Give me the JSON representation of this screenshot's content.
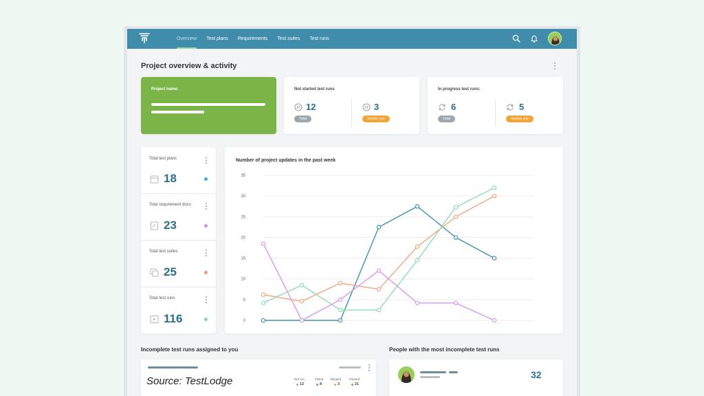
{
  "nav": {
    "items": [
      {
        "label": "Overview",
        "active": true
      },
      {
        "label": "Test plans",
        "active": false
      },
      {
        "label": "Requirements",
        "active": false
      },
      {
        "label": "Test suites",
        "active": false
      },
      {
        "label": "Test runs",
        "active": false
      }
    ],
    "icons": [
      "logo-icon",
      "search-icon",
      "bell-icon",
      "avatar"
    ]
  },
  "page": {
    "title": "Project overview & activity"
  },
  "project_card": {
    "label": "Project name:",
    "color": "#7cb547"
  },
  "not_started": {
    "label": "Not started test runs",
    "total_value": "12",
    "total_badge": "Total",
    "involve_value": "3",
    "involve_badge": "Involve you"
  },
  "in_progress": {
    "label": "In progress test runs:",
    "total_value": "6",
    "total_badge": "Total",
    "involve_value": "5",
    "involve_badge": "Involve you"
  },
  "totals": [
    {
      "label": "Total test plans",
      "value": "18",
      "icon": "calendar-icon",
      "color": "#3ab0cf"
    },
    {
      "label": "Total requirement docs",
      "value": "23",
      "icon": "document-icon",
      "color": "#d18df0"
    },
    {
      "label": "Total test suites",
      "value": "25",
      "icon": "stack-icon",
      "color": "#f49b6b"
    },
    {
      "label": "Total test runs",
      "value": "116",
      "icon": "play-icon",
      "color": "#7fdbb0"
    }
  ],
  "chart_data": {
    "type": "line",
    "title": "Number of project updates in the past week",
    "x": [
      0,
      1,
      2,
      3,
      4,
      5,
      6,
      7
    ],
    "ylim": [
      0,
      35
    ],
    "yticks": [
      "0",
      "5",
      "10",
      "15",
      "20",
      "25",
      "30",
      "35"
    ],
    "grid": true,
    "series": [
      {
        "color": "#3b93ad",
        "values": [
          0,
          0,
          0,
          22.5,
          27.5,
          20,
          15,
          null
        ]
      },
      {
        "color": "#f2a57a",
        "values": [
          6.2,
          4.6,
          9,
          7.5,
          17.8,
          25,
          30,
          null
        ]
      },
      {
        "color": "#8fdcb4",
        "values": [
          4.2,
          8.5,
          2.5,
          2.5,
          14.5,
          27.3,
          32,
          null
        ]
      },
      {
        "color": "#d898f0",
        "values": [
          18.5,
          0,
          5,
          12,
          4.2,
          4.2,
          0,
          null
        ]
      }
    ]
  },
  "incomplete": {
    "title": "Incomplete test runs assigned to you",
    "stats": [
      {
        "label": "Not run",
        "value": "12",
        "color": "#9da7ad"
      },
      {
        "label": "Failed",
        "value": "8",
        "color": "#e46b6b"
      },
      {
        "label": "Skipped",
        "value": "3",
        "color": "#f0a537"
      },
      {
        "label": "Passed",
        "value": "21",
        "color": "#7cb547"
      }
    ]
  },
  "people": {
    "title": "People with the most incomplete test runs",
    "count": "32"
  },
  "source": "Source: TestLodge"
}
